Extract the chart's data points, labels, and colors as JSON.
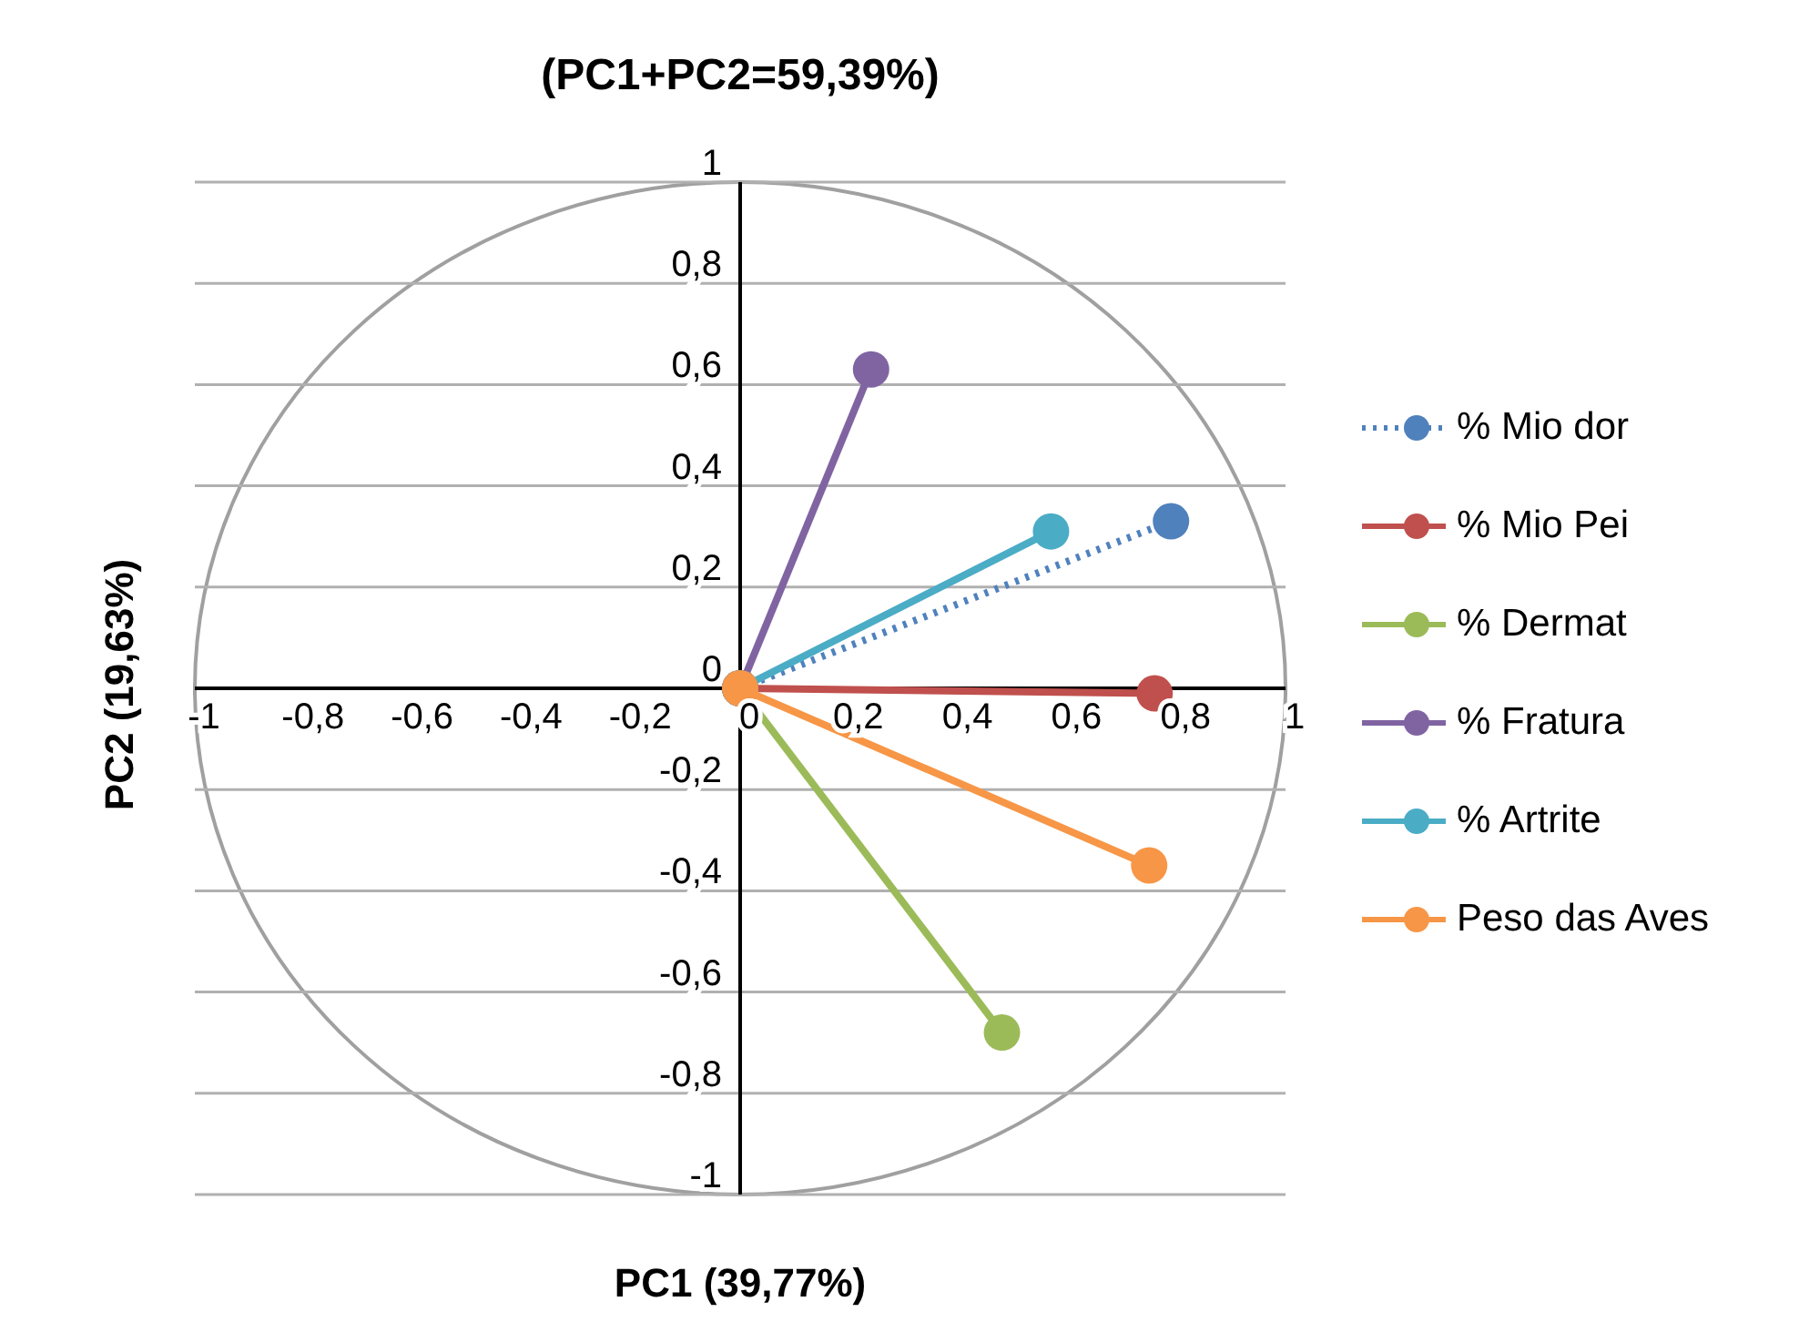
{
  "chart_data": {
    "type": "line",
    "title": "(PC1+PC2=59,39%)",
    "xlabel": "PC1 (39,77%)",
    "ylabel": "PC2 (19,63%)",
    "xlim": [
      -1,
      1
    ],
    "ylim": [
      -1,
      1
    ],
    "xticks": [
      -1,
      {
        "value": -0.8,
        "label": "-0,8"
      },
      {
        "value": -0.6,
        "label": "-0,6"
      },
      {
        "value": -0.4,
        "label": "-0,4"
      },
      {
        "value": -0.2,
        "label": "-0,2"
      },
      0,
      {
        "value": 0.2,
        "label": "0,2"
      },
      {
        "value": 0.4,
        "label": "0,4"
      },
      {
        "value": 0.6,
        "label": "0,6"
      },
      {
        "value": 0.8,
        "label": "0,8"
      },
      1
    ],
    "yticks": [
      -1,
      {
        "value": -0.8,
        "label": "-0,8"
      },
      {
        "value": -0.6,
        "label": "-0,6"
      },
      {
        "value": -0.4,
        "label": "-0,4"
      },
      {
        "value": -0.2,
        "label": "-0,2"
      },
      0,
      {
        "value": 0.2,
        "label": "0,2"
      },
      {
        "value": 0.4,
        "label": "0,4"
      },
      {
        "value": 0.6,
        "label": "0,6"
      },
      {
        "value": 0.8,
        "label": "0,8"
      },
      1
    ],
    "grid": "y",
    "legend": "right",
    "marker": "circle",
    "series": [
      {
        "name": "% Mio dor",
        "color": "#4f81bd",
        "line_style": "dotted",
        "x": [
          0,
          0.79
        ],
        "values": [
          0,
          0.33
        ]
      },
      {
        "name": "% Mio Pei",
        "color": "#c0504d",
        "line_style": "solid",
        "x": [
          0,
          0.76
        ],
        "values": [
          0,
          -0.01
        ]
      },
      {
        "name": "% Dermat",
        "color": "#9bbb59",
        "line_style": "solid",
        "x": [
          0,
          0.48
        ],
        "values": [
          0,
          -0.68
        ]
      },
      {
        "name": "% Fratura",
        "color": "#8064a2",
        "line_style": "solid",
        "x": [
          0,
          0.24
        ],
        "values": [
          0,
          0.63
        ]
      },
      {
        "name": "% Artrite",
        "color": "#4bacc6",
        "line_style": "solid",
        "x": [
          0,
          0.57
        ],
        "values": [
          0,
          0.31
        ]
      },
      {
        "name": "Peso das Aves",
        "color": "#f79646",
        "line_style": "solid",
        "x": [
          0,
          0.75
        ],
        "values": [
          0,
          -0.35
        ]
      }
    ]
  }
}
